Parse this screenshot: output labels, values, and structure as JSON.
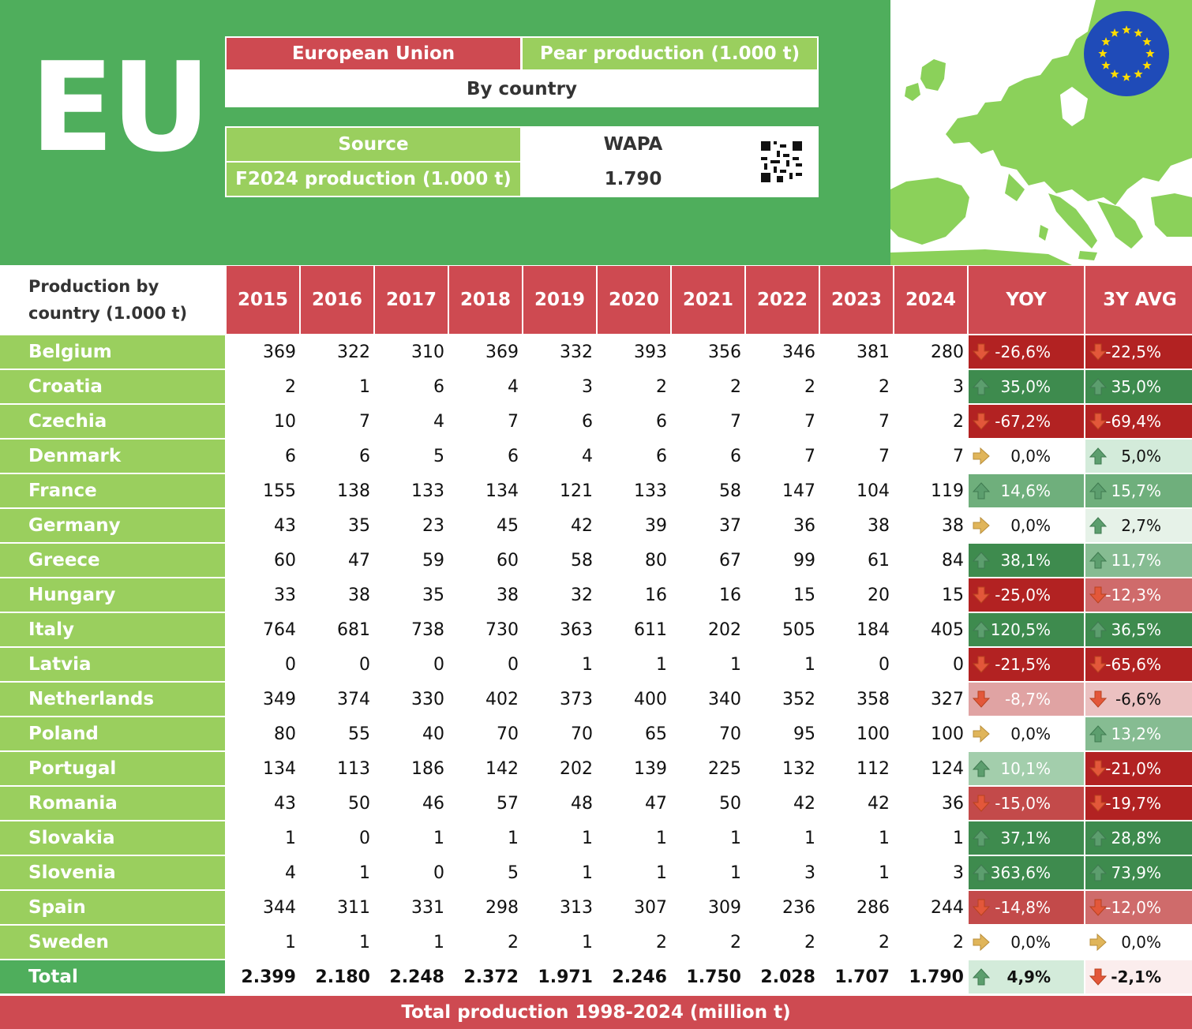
{
  "header": {
    "logo": "EU",
    "region": "European Union",
    "product": "Pear production (1.000 t)",
    "subtitle": "By country",
    "source_label": "Source",
    "source_value": "WAPA",
    "production_label": "F2024 production (1.000 t)",
    "production_value": "1.790"
  },
  "table": {
    "corner_label": "Production by country (1.000 t)",
    "years": [
      "2015",
      "2016",
      "2017",
      "2018",
      "2019",
      "2020",
      "2021",
      "2022",
      "2023",
      "2024"
    ],
    "yoy_label": "YOY",
    "avg_label": "3Y AVG",
    "rows": [
      {
        "country": "Belgium",
        "values": [
          "369",
          "322",
          "310",
          "369",
          "332",
          "393",
          "356",
          "346",
          "381",
          "280"
        ],
        "yoy": "-26,6%",
        "yoy_dir": "down",
        "yoy_bg": "#B22222",
        "yoy_fg": "#fff",
        "avg": "-22,5%",
        "avg_dir": "down",
        "avg_bg": "#B22222",
        "avg_fg": "#fff"
      },
      {
        "country": "Croatia",
        "values": [
          "2",
          "1",
          "6",
          "4",
          "3",
          "2",
          "2",
          "2",
          "2",
          "3"
        ],
        "yoy": "35,0%",
        "yoy_dir": "up",
        "yoy_bg": "#3E8B4E",
        "yoy_fg": "#fff",
        "avg": "35,0%",
        "avg_dir": "up",
        "avg_bg": "#3E8B4E",
        "avg_fg": "#fff"
      },
      {
        "country": "Czechia",
        "values": [
          "10",
          "7",
          "4",
          "7",
          "6",
          "6",
          "7",
          "7",
          "7",
          "2"
        ],
        "yoy": "-67,2%",
        "yoy_dir": "down",
        "yoy_bg": "#B22222",
        "yoy_fg": "#fff",
        "avg": "-69,4%",
        "avg_dir": "down",
        "avg_bg": "#B22222",
        "avg_fg": "#fff"
      },
      {
        "country": "Denmark",
        "values": [
          "6",
          "6",
          "5",
          "6",
          "4",
          "6",
          "6",
          "7",
          "7",
          "7"
        ],
        "yoy": "0,0%",
        "yoy_dir": "flat",
        "yoy_bg": "#ffffff",
        "yoy_fg": "#111",
        "avg": "5,0%",
        "avg_dir": "up",
        "avg_bg": "#D3EBDA",
        "avg_fg": "#111"
      },
      {
        "country": "France",
        "values": [
          "155",
          "138",
          "133",
          "134",
          "121",
          "133",
          "58",
          "147",
          "104",
          "119"
        ],
        "yoy": "14,6%",
        "yoy_dir": "up",
        "yoy_bg": "#6FAF7C",
        "yoy_fg": "#fff",
        "avg": "15,7%",
        "avg_dir": "up",
        "avg_bg": "#6FAF7C",
        "avg_fg": "#fff"
      },
      {
        "country": "Germany",
        "values": [
          "43",
          "35",
          "23",
          "45",
          "42",
          "39",
          "37",
          "36",
          "38",
          "38"
        ],
        "yoy": "0,0%",
        "yoy_dir": "flat",
        "yoy_bg": "#ffffff",
        "yoy_fg": "#111",
        "avg": "2,7%",
        "avg_dir": "up",
        "avg_bg": "#E6F2E8",
        "avg_fg": "#111"
      },
      {
        "country": "Greece",
        "values": [
          "60",
          "47",
          "59",
          "60",
          "58",
          "80",
          "67",
          "99",
          "61",
          "84"
        ],
        "yoy": "38,1%",
        "yoy_dir": "up",
        "yoy_bg": "#3E8B4E",
        "yoy_fg": "#fff",
        "avg": "11,7%",
        "avg_dir": "up",
        "avg_bg": "#86BC92",
        "avg_fg": "#fff"
      },
      {
        "country": "Hungary",
        "values": [
          "33",
          "38",
          "35",
          "38",
          "32",
          "16",
          "16",
          "15",
          "20",
          "15"
        ],
        "yoy": "-25,0%",
        "yoy_dir": "down",
        "yoy_bg": "#B22222",
        "yoy_fg": "#fff",
        "avg": "-12,3%",
        "avg_dir": "down",
        "avg_bg": "#CF6B6B",
        "avg_fg": "#fff"
      },
      {
        "country": "Italy",
        "values": [
          "764",
          "681",
          "738",
          "730",
          "363",
          "611",
          "202",
          "505",
          "184",
          "405"
        ],
        "yoy": "120,5%",
        "yoy_dir": "up",
        "yoy_bg": "#3E8B4E",
        "yoy_fg": "#fff",
        "avg": "36,5%",
        "avg_dir": "up",
        "avg_bg": "#3E8B4E",
        "avg_fg": "#fff"
      },
      {
        "country": "Latvia",
        "values": [
          "0",
          "0",
          "0",
          "0",
          "1",
          "1",
          "1",
          "1",
          "0",
          "0"
        ],
        "yoy": "-21,5%",
        "yoy_dir": "down",
        "yoy_bg": "#B22222",
        "yoy_fg": "#fff",
        "avg": "-65,6%",
        "avg_dir": "down",
        "avg_bg": "#B22222",
        "avg_fg": "#fff"
      },
      {
        "country": "Netherlands",
        "values": [
          "349",
          "374",
          "330",
          "402",
          "373",
          "400",
          "340",
          "352",
          "358",
          "327"
        ],
        "yoy": "-8,7%",
        "yoy_dir": "down",
        "yoy_bg": "#E0A3A3",
        "yoy_fg": "#fff",
        "avg": "-6,6%",
        "avg_dir": "down",
        "avg_bg": "#EBC1C1",
        "avg_fg": "#111"
      },
      {
        "country": "Poland",
        "values": [
          "80",
          "55",
          "40",
          "70",
          "70",
          "65",
          "70",
          "95",
          "100",
          "100"
        ],
        "yoy": "0,0%",
        "yoy_dir": "flat",
        "yoy_bg": "#ffffff",
        "yoy_fg": "#111",
        "avg": "13,2%",
        "avg_dir": "up",
        "avg_bg": "#86BC92",
        "avg_fg": "#fff"
      },
      {
        "country": "Portugal",
        "values": [
          "134",
          "113",
          "186",
          "142",
          "202",
          "139",
          "225",
          "132",
          "112",
          "124"
        ],
        "yoy": "10,1%",
        "yoy_dir": "up",
        "yoy_bg": "#A3CEAC",
        "yoy_fg": "#fff",
        "avg": "-21,0%",
        "avg_dir": "down",
        "avg_bg": "#B22222",
        "avg_fg": "#fff"
      },
      {
        "country": "Romania",
        "values": [
          "43",
          "50",
          "46",
          "57",
          "48",
          "47",
          "50",
          "42",
          "42",
          "36"
        ],
        "yoy": "-15,0%",
        "yoy_dir": "down",
        "yoy_bg": "#C34A4A",
        "yoy_fg": "#fff",
        "avg": "-19,7%",
        "avg_dir": "down",
        "avg_bg": "#B22222",
        "avg_fg": "#fff"
      },
      {
        "country": "Slovakia",
        "values": [
          "1",
          "0",
          "1",
          "1",
          "1",
          "1",
          "1",
          "1",
          "1",
          "1"
        ],
        "yoy": "37,1%",
        "yoy_dir": "up",
        "yoy_bg": "#3E8B4E",
        "yoy_fg": "#fff",
        "avg": "28,8%",
        "avg_dir": "up",
        "avg_bg": "#3E8B4E",
        "avg_fg": "#fff"
      },
      {
        "country": "Slovenia",
        "values": [
          "4",
          "1",
          "0",
          "5",
          "1",
          "1",
          "1",
          "3",
          "1",
          "3"
        ],
        "yoy": "363,6%",
        "yoy_dir": "up",
        "yoy_bg": "#3E8B4E",
        "yoy_fg": "#fff",
        "avg": "73,9%",
        "avg_dir": "up",
        "avg_bg": "#3E8B4E",
        "avg_fg": "#fff"
      },
      {
        "country": "Spain",
        "values": [
          "344",
          "311",
          "331",
          "298",
          "313",
          "307",
          "309",
          "236",
          "286",
          "244"
        ],
        "yoy": "-14,8%",
        "yoy_dir": "down",
        "yoy_bg": "#C34A4A",
        "yoy_fg": "#fff",
        "avg": "-12,0%",
        "avg_dir": "down",
        "avg_bg": "#CF6B6B",
        "avg_fg": "#fff"
      },
      {
        "country": "Sweden",
        "values": [
          "1",
          "1",
          "1",
          "2",
          "1",
          "2",
          "2",
          "2",
          "2",
          "2"
        ],
        "yoy": "0,0%",
        "yoy_dir": "flat",
        "yoy_bg": "#ffffff",
        "yoy_fg": "#111",
        "avg": "0,0%",
        "avg_dir": "flat",
        "avg_bg": "#ffffff",
        "avg_fg": "#111"
      }
    ],
    "total": {
      "country": "Total",
      "values": [
        "2.399",
        "2.180",
        "2.248",
        "2.372",
        "1.971",
        "2.246",
        "1.750",
        "2.028",
        "1.707",
        "1.790"
      ],
      "yoy": "4,9%",
      "yoy_dir": "up",
      "yoy_bg": "#D3EBDA",
      "yoy_fg": "#111",
      "avg": "-2,1%",
      "avg_dir": "down",
      "avg_bg": "#FBEDED",
      "avg_fg": "#111"
    }
  },
  "footer": {
    "label": "Total production 1998-2024 (million t)"
  },
  "colors": {
    "header_green": "#4FAE5C",
    "light_green": "#9ACF5E",
    "red": "#CE4A51"
  }
}
